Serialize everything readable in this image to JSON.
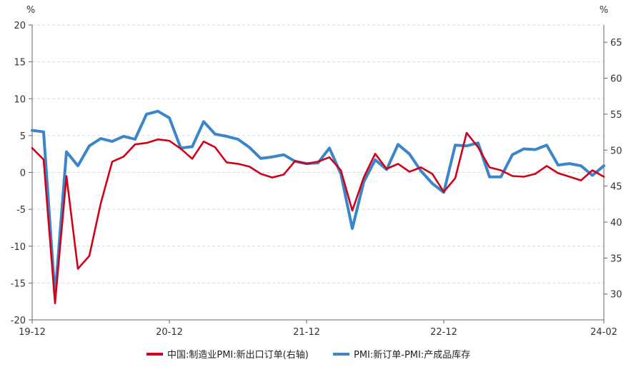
{
  "chart_data": {
    "type": "line",
    "left_unit": "%",
    "right_unit": "%",
    "grid": true,
    "legend_position": "bottom",
    "x_tick_labels": [
      "19-12",
      "20-12",
      "21-12",
      "22-12",
      "24-02"
    ],
    "left_axis": {
      "min": -20,
      "max": 20,
      "ticks": [
        "20",
        "15",
        "10",
        "5",
        "0",
        "-5",
        "-10",
        "-15",
        "-20"
      ]
    },
    "right_axis": {
      "min": 26.4,
      "max": 67.4,
      "ticks": [
        "65",
        "60",
        "55",
        "50",
        "45",
        "40",
        "35",
        "30"
      ]
    },
    "x": [
      "2019-12",
      "2020-01",
      "2020-02",
      "2020-03",
      "2020-04",
      "2020-05",
      "2020-06",
      "2020-07",
      "2020-08",
      "2020-09",
      "2020-10",
      "2020-11",
      "2020-12",
      "2021-01",
      "2021-02",
      "2021-03",
      "2021-04",
      "2021-05",
      "2021-06",
      "2021-07",
      "2021-08",
      "2021-09",
      "2021-10",
      "2021-11",
      "2021-12",
      "2022-01",
      "2022-02",
      "2022-03",
      "2022-04",
      "2022-05",
      "2022-06",
      "2022-07",
      "2022-08",
      "2022-09",
      "2022-10",
      "2022-11",
      "2022-12",
      "2023-01",
      "2023-02",
      "2023-03",
      "2023-04",
      "2023-05",
      "2023-06",
      "2023-07",
      "2023-08",
      "2023-09",
      "2023-10",
      "2023-11",
      "2023-12",
      "2024-01",
      "2024-02"
    ],
    "series": [
      {
        "name": "中国:制造业PMI:新出口订单(右轴)",
        "axis": "right",
        "color": "#d0021b",
        "values": [
          50.3,
          48.7,
          28.7,
          46.4,
          33.5,
          35.3,
          42.6,
          48.4,
          49.1,
          50.8,
          51.0,
          51.5,
          51.3,
          50.2,
          48.8,
          51.2,
          50.4,
          48.3,
          48.1,
          47.7,
          46.7,
          46.2,
          46.6,
          48.5,
          48.1,
          48.4,
          49.0,
          47.2,
          41.6,
          46.2,
          49.5,
          47.4,
          48.1,
          47.0,
          47.6,
          46.7,
          44.2,
          46.1,
          52.4,
          50.4,
          47.6,
          47.2,
          46.4,
          46.3,
          46.7,
          47.8,
          46.8,
          46.3,
          45.8,
          47.2,
          46.3
        ]
      },
      {
        "name": "PMI:新订单-PMI:产成品库存",
        "axis": "left",
        "color": "#3b86c9",
        "values": [
          5.7,
          5.5,
          -16.8,
          2.8,
          0.9,
          3.6,
          4.6,
          4.2,
          4.9,
          4.5,
          7.9,
          8.3,
          7.4,
          3.3,
          3.5,
          6.9,
          5.2,
          4.9,
          4.5,
          3.4,
          1.9,
          2.1,
          2.4,
          1.5,
          1.2,
          1.3,
          3.3,
          -0.2,
          -7.6,
          -1.3,
          1.7,
          0.4,
          3.8,
          2.5,
          0.2,
          -1.5,
          -2.7,
          3.7,
          3.6,
          4.0,
          -0.6,
          -0.6,
          2.4,
          3.2,
          3.1,
          3.7,
          1.0,
          1.2,
          0.9,
          -0.4,
          0.9
        ]
      }
    ]
  }
}
